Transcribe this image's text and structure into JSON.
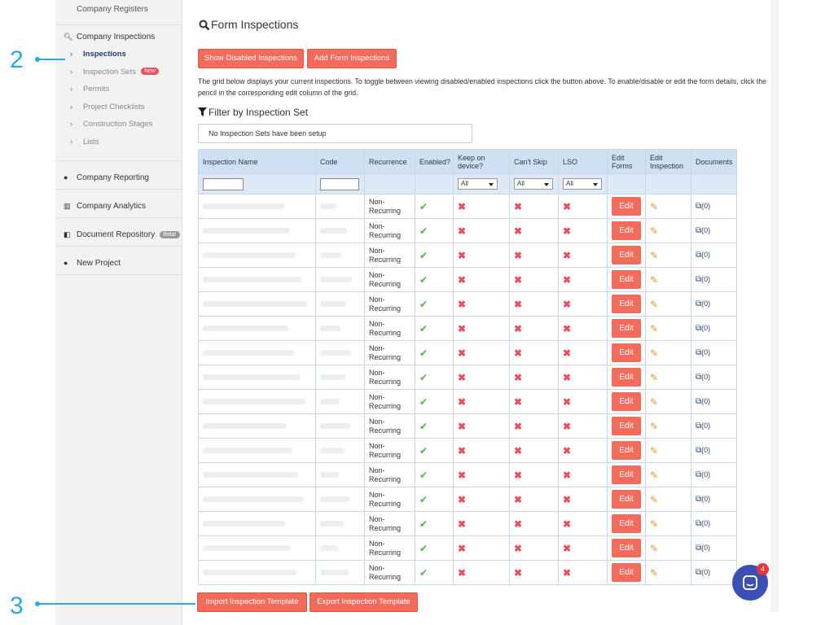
{
  "sidebar": {
    "top_item": "Company Registers",
    "sections": [
      {
        "label": "Company Inspections",
        "children": [
          {
            "label": "Inspections"
          },
          {
            "label": "Inspection Sets",
            "badge": "New"
          },
          {
            "label": "Permits"
          },
          {
            "label": "Project Checklists"
          },
          {
            "label": "Construction Stages"
          },
          {
            "label": "Lists"
          }
        ]
      },
      {
        "label": "Company Reporting"
      },
      {
        "label": "Company Analytics"
      },
      {
        "label": "Document Repository",
        "badge": "Beta!"
      },
      {
        "label": "New Project"
      }
    ]
  },
  "annotations": [
    "2",
    "3"
  ],
  "main": {
    "title": "Form Inspections",
    "buttons": [
      "Show Disabled Inspections",
      "Add Form Inspections"
    ],
    "description": "The grid below displays your current inspections. To toggle between viewing disabled/enabled inspections click the button above. To enable/disable or edit the form details, click the pencil in the corresponding edit column of the grid.",
    "filter_title": "Filter by Inspection Set",
    "filter_placeholder": "No Inspection Sets have been setup",
    "table": {
      "headers": [
        "Inspection Name",
        "Code",
        "Recurrence",
        "Enabled?",
        "Keep on device?",
        "Can't Skip",
        "LSO",
        "Edit Forms",
        "Edit Inspection",
        "Documents"
      ],
      "filter_all": "All",
      "rows": [
        {
          "recurrence": "Non-Recurring",
          "enabled": true,
          "keep_on_device": false,
          "cant_skip": false,
          "lso": false,
          "edit": "Edit",
          "documents": "(0)"
        },
        {
          "recurrence": "Non-Recurring",
          "enabled": true,
          "keep_on_device": false,
          "cant_skip": false,
          "lso": false,
          "edit": "Edit",
          "documents": "(0)"
        },
        {
          "recurrence": "Non-Recurring",
          "enabled": true,
          "keep_on_device": false,
          "cant_skip": false,
          "lso": false,
          "edit": "Edit",
          "documents": "(0)"
        },
        {
          "recurrence": "Non-Recurring",
          "enabled": true,
          "keep_on_device": false,
          "cant_skip": false,
          "lso": false,
          "edit": "Edit",
          "documents": "(0)"
        },
        {
          "recurrence": "Non-Recurring",
          "enabled": true,
          "keep_on_device": false,
          "cant_skip": false,
          "lso": false,
          "edit": "Edit",
          "documents": "(0)"
        },
        {
          "recurrence": "Non-Recurring",
          "enabled": true,
          "keep_on_device": false,
          "cant_skip": false,
          "lso": false,
          "edit": "Edit",
          "documents": "(0)"
        },
        {
          "recurrence": "Non-Recurring",
          "enabled": true,
          "keep_on_device": false,
          "cant_skip": false,
          "lso": false,
          "edit": "Edit",
          "documents": "(0)"
        },
        {
          "recurrence": "Non-Recurring",
          "enabled": true,
          "keep_on_device": false,
          "cant_skip": false,
          "lso": false,
          "edit": "Edit",
          "documents": "(0)"
        },
        {
          "recurrence": "Non-Recurring",
          "enabled": true,
          "keep_on_device": false,
          "cant_skip": false,
          "lso": false,
          "edit": "Edit",
          "documents": "(0)"
        },
        {
          "recurrence": "Non-Recurring",
          "enabled": true,
          "keep_on_device": false,
          "cant_skip": false,
          "lso": false,
          "edit": "Edit",
          "documents": "(0)"
        },
        {
          "recurrence": "Non-Recurring",
          "enabled": true,
          "keep_on_device": false,
          "cant_skip": false,
          "lso": false,
          "edit": "Edit",
          "documents": "(0)"
        },
        {
          "recurrence": "Non-Recurring",
          "enabled": true,
          "keep_on_device": false,
          "cant_skip": false,
          "lso": false,
          "edit": "Edit",
          "documents": "(0)"
        },
        {
          "recurrence": "Non-Recurring",
          "enabled": true,
          "keep_on_device": false,
          "cant_skip": false,
          "lso": false,
          "edit": "Edit",
          "documents": "(0)"
        },
        {
          "recurrence": "Non-Recurring",
          "enabled": true,
          "keep_on_device": false,
          "cant_skip": false,
          "lso": false,
          "edit": "Edit",
          "documents": "(0)"
        },
        {
          "recurrence": "Non-Recurring",
          "enabled": true,
          "keep_on_device": false,
          "cant_skip": false,
          "lso": false,
          "edit": "Edit",
          "documents": "(0)"
        },
        {
          "recurrence": "Non-Recurring",
          "enabled": true,
          "keep_on_device": false,
          "cant_skip": false,
          "lso": false,
          "edit": "Edit",
          "documents": "(0)"
        }
      ]
    },
    "footer_buttons": [
      "Import Inspection Template",
      "Export Inspection Template"
    ]
  },
  "chat_badge": "4"
}
